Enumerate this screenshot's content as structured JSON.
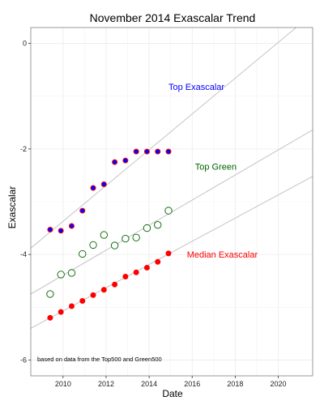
{
  "chart_data": {
    "type": "scatter",
    "title": "November 2014 Exascalar Trend",
    "xlabel": "Date",
    "ylabel": "Exascalar",
    "xlim": [
      2008.5,
      2021.6
    ],
    "ylim": [
      -6.3,
      0.3
    ],
    "x_ticks": [
      2010,
      2012,
      2014,
      2016,
      2018,
      2020
    ],
    "y_ticks": [
      0,
      -2,
      -4,
      -6
    ],
    "grid": true,
    "legend": "none",
    "series": [
      {
        "name": "Top Exascalar",
        "label_color": "#0000ff",
        "fill": "#0000ff",
        "stroke": "#ff0000",
        "hollow": false,
        "x": [
          2009.4,
          2009.9,
          2010.4,
          2010.9,
          2011.4,
          2011.9,
          2012.4,
          2012.9,
          2013.4,
          2013.9,
          2014.4,
          2014.9
        ],
        "y": [
          -3.53,
          -3.55,
          -3.46,
          -3.17,
          -2.74,
          -2.67,
          -2.25,
          -2.22,
          -2.05,
          -2.05,
          -2.05,
          -2.05
        ],
        "trend": {
          "x": [
            2008.5,
            2021.6
          ],
          "y": [
            -3.88,
            0.56
          ]
        }
      },
      {
        "name": "Top Green",
        "label_color": "#006400",
        "fill": "#ffffff",
        "stroke": "#006400",
        "hollow": true,
        "x": [
          2009.4,
          2009.9,
          2010.4,
          2010.9,
          2011.4,
          2011.9,
          2012.4,
          2012.9,
          2013.4,
          2013.9,
          2014.4,
          2014.9
        ],
        "y": [
          -4.75,
          -4.38,
          -4.35,
          -3.99,
          -3.82,
          -3.63,
          -3.83,
          -3.7,
          -3.68,
          -3.5,
          -3.44,
          -3.17
        ],
        "trend": {
          "x": [
            2008.5,
            2021.6
          ],
          "y": [
            -4.75,
            -1.64
          ]
        }
      },
      {
        "name": "Median Exascalar",
        "label_color": "#ff0000",
        "fill": "#ff0000",
        "stroke": "#ff0000",
        "hollow": false,
        "x": [
          2009.4,
          2009.9,
          2010.4,
          2010.9,
          2011.4,
          2011.9,
          2012.4,
          2012.9,
          2013.4,
          2013.9,
          2014.4,
          2014.9
        ],
        "y": [
          -5.2,
          -5.09,
          -4.98,
          -4.88,
          -4.77,
          -4.67,
          -4.57,
          -4.42,
          -4.34,
          -4.25,
          -4.14,
          -3.98
        ],
        "trend": {
          "x": [
            2008.5,
            2021.6
          ],
          "y": [
            -5.4,
            -2.52
          ]
        }
      }
    ],
    "annotations": [
      {
        "text": "Top Exascalar",
        "x": 2016.2,
        "y": -0.82,
        "color": "#0000ff"
      },
      {
        "text": "Top Green",
        "x": 2017.1,
        "y": -2.33,
        "color": "#006400"
      },
      {
        "text": "Median Exascalar",
        "x": 2017.4,
        "y": -4.0,
        "color": "#ff0000"
      }
    ],
    "note": "based on data from the Top500 and Green500"
  }
}
